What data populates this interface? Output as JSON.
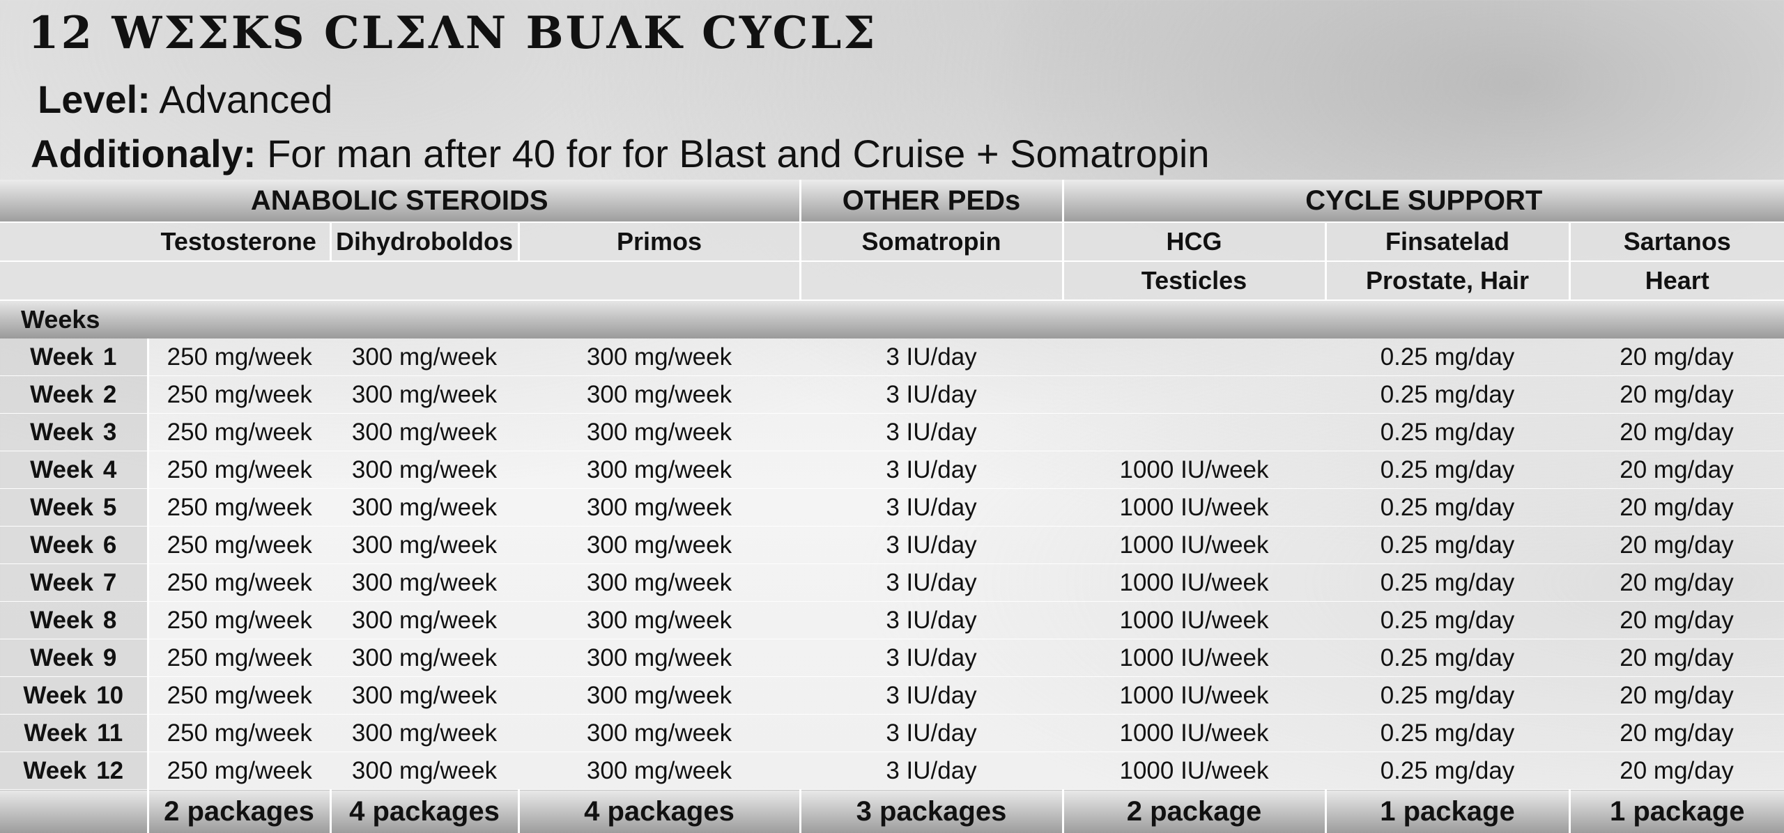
{
  "header": {
    "title": "12 WΣΣKS CLΣΛN BUΛK CYCLΣ",
    "level_label": "Level:",
    "level_value": "Advanced",
    "additional_label": "Additionaly:",
    "additional_value": "For man after 40 for for Blast and Cruise + Somatropin"
  },
  "table": {
    "groups": [
      "ANABOLIC STEROIDS",
      "OTHER PEDs",
      "CYCLE SUPPORT"
    ],
    "columns": [
      {
        "name": "Testosterone",
        "purpose": ""
      },
      {
        "name": "Dihydroboldos",
        "purpose": ""
      },
      {
        "name": "Primos",
        "purpose": ""
      },
      {
        "name": "Somatropin",
        "purpose": ""
      },
      {
        "name": "HCG",
        "purpose": "Testicles"
      },
      {
        "name": "Finsatelad",
        "purpose": "Prostate, Hair"
      },
      {
        "name": "Sartanos",
        "purpose": "Heart"
      }
    ],
    "weeks_label": "Weeks",
    "week_word": "Week",
    "rows": [
      {
        "week": "1",
        "values": [
          "250 mg/week",
          "300 mg/week",
          "300 mg/week",
          "3 IU/day",
          "",
          "0.25 mg/day",
          "20 mg/day"
        ]
      },
      {
        "week": "2",
        "values": [
          "250 mg/week",
          "300 mg/week",
          "300 mg/week",
          "3 IU/day",
          "",
          "0.25 mg/day",
          "20 mg/day"
        ]
      },
      {
        "week": "3",
        "values": [
          "250 mg/week",
          "300 mg/week",
          "300 mg/week",
          "3 IU/day",
          "",
          "0.25 mg/day",
          "20 mg/day"
        ]
      },
      {
        "week": "4",
        "values": [
          "250 mg/week",
          "300 mg/week",
          "300 mg/week",
          "3 IU/day",
          "1000 IU/week",
          "0.25 mg/day",
          "20 mg/day"
        ]
      },
      {
        "week": "5",
        "values": [
          "250 mg/week",
          "300 mg/week",
          "300 mg/week",
          "3 IU/day",
          "1000 IU/week",
          "0.25 mg/day",
          "20 mg/day"
        ]
      },
      {
        "week": "6",
        "values": [
          "250 mg/week",
          "300 mg/week",
          "300 mg/week",
          "3 IU/day",
          "1000 IU/week",
          "0.25 mg/day",
          "20 mg/day"
        ]
      },
      {
        "week": "7",
        "values": [
          "250 mg/week",
          "300 mg/week",
          "300 mg/week",
          "3 IU/day",
          "1000 IU/week",
          "0.25 mg/day",
          "20 mg/day"
        ]
      },
      {
        "week": "8",
        "values": [
          "250 mg/week",
          "300 mg/week",
          "300 mg/week",
          "3 IU/day",
          "1000 IU/week",
          "0.25 mg/day",
          "20 mg/day"
        ]
      },
      {
        "week": "9",
        "values": [
          "250 mg/week",
          "300 mg/week",
          "300 mg/week",
          "3 IU/day",
          "1000 IU/week",
          "0.25 mg/day",
          "20 mg/day"
        ]
      },
      {
        "week": "10",
        "values": [
          "250 mg/week",
          "300 mg/week",
          "300 mg/week",
          "3 IU/day",
          "1000 IU/week",
          "0.25 mg/day",
          "20 mg/day"
        ]
      },
      {
        "week": "11",
        "values": [
          "250 mg/week",
          "300 mg/week",
          "300 mg/week",
          "3 IU/day",
          "1000 IU/week",
          "0.25 mg/day",
          "20 mg/day"
        ]
      },
      {
        "week": "12",
        "values": [
          "250 mg/week",
          "300 mg/week",
          "300 mg/week",
          "3 IU/day",
          "1000 IU/week",
          "0.25 mg/day",
          "20 mg/day"
        ]
      }
    ],
    "totals": [
      "2 packages",
      "4 packages",
      "4 packages",
      "3 packages",
      "2 package",
      "1 package",
      "1 package"
    ]
  }
}
